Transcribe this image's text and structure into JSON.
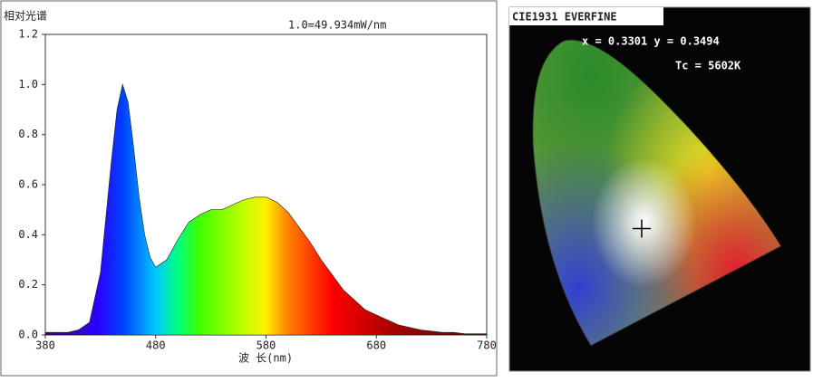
{
  "chart_data": [
    {
      "type": "area",
      "title": "相对光谱",
      "annotation": "1.0=49.934mW/nm",
      "x_label": "波 长(nm)",
      "x": [
        380,
        390,
        400,
        410,
        420,
        430,
        440,
        445,
        450,
        455,
        460,
        465,
        470,
        475,
        480,
        490,
        500,
        510,
        520,
        530,
        540,
        550,
        560,
        570,
        580,
        590,
        600,
        610,
        620,
        630,
        640,
        650,
        660,
        670,
        680,
        690,
        700,
        710,
        720,
        730,
        740,
        750,
        760,
        770,
        780
      ],
      "series": [
        {
          "values": [
            0.01,
            0.01,
            0.01,
            0.02,
            0.05,
            0.25,
            0.7,
            0.9,
            1.0,
            0.93,
            0.75,
            0.55,
            0.4,
            0.31,
            0.27,
            0.3,
            0.38,
            0.45,
            0.48,
            0.5,
            0.5,
            0.52,
            0.54,
            0.55,
            0.55,
            0.53,
            0.49,
            0.43,
            0.37,
            0.3,
            0.24,
            0.18,
            0.14,
            0.1,
            0.08,
            0.06,
            0.04,
            0.03,
            0.02,
            0.015,
            0.01,
            0.01,
            0.005,
            0.005,
            0.005
          ]
        }
      ],
      "xlim": [
        380,
        780
      ],
      "xticks": [
        380,
        480,
        580,
        680,
        780
      ],
      "ylim": [
        0,
        1.2
      ],
      "yticks": [
        {
          "value": 0,
          "label": "0.0"
        },
        0.2,
        0.4,
        0.6,
        0.8,
        {
          "value": 1,
          "label": "1.0"
        },
        1.2
      ]
    },
    {
      "type": "chromaticity",
      "title": "CIE1931 EVERFINE",
      "annotations": [
        "x = 0.3301 y = 0.3494",
        "Tc = 5602K"
      ],
      "point": {
        "x": 0.3301,
        "y": 0.3494
      },
      "xlim": [
        0,
        0.8
      ],
      "ylim": [
        0,
        0.9
      ]
    }
  ]
}
